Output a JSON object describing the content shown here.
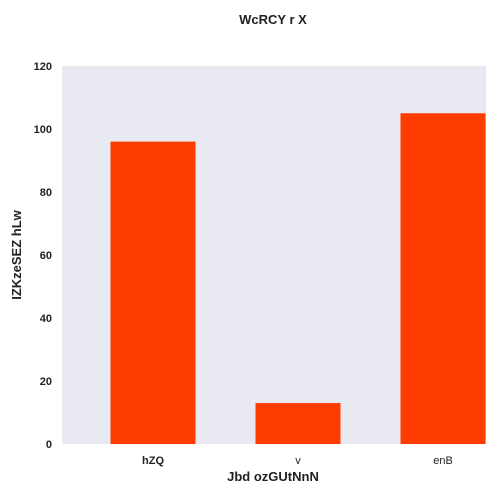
{
  "chart_data": {
    "type": "bar",
    "title": "WcRCY r X",
    "xlabel": "Jbd ozGUtNnN",
    "ylabel": "IZKzeSEZ hLw",
    "categories": [
      "hZQ",
      "v",
      "enB"
    ],
    "category_label_bold": [
      true,
      false,
      false
    ],
    "values": [
      96,
      13,
      105
    ],
    "ylim": [
      0,
      120
    ],
    "yticks": [
      0,
      20,
      40,
      60,
      80,
      100,
      120
    ],
    "grid": false,
    "legend": "none",
    "colors": {
      "bar": "#ff3c00",
      "plot_background": "#e9e9f1",
      "text": "#222222"
    }
  }
}
